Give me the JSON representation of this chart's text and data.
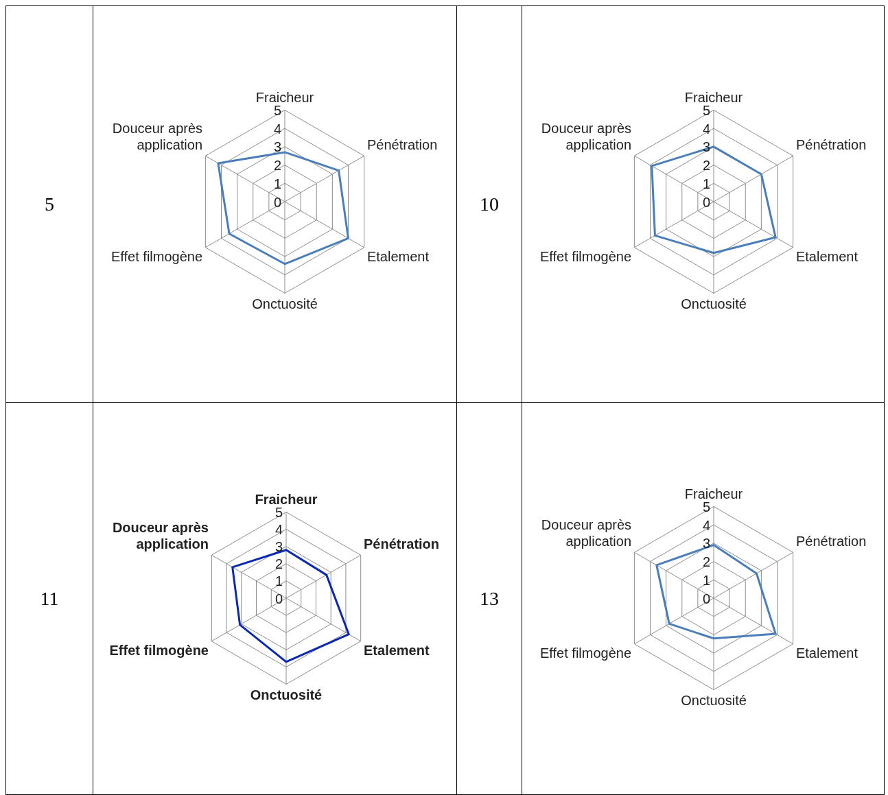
{
  "chart_data": [
    {
      "type": "radar",
      "title": "5",
      "categories": [
        "Fraicheur",
        "Pénétration",
        "Etalement",
        "Onctuosité",
        "Effet filmogène",
        "Douceur après application"
      ],
      "ylim": [
        0,
        5
      ],
      "yticks": [
        0,
        1,
        2,
        3,
        4,
        5
      ],
      "grid": true,
      "legend": false,
      "series": [
        {
          "color": "#4a7ebb",
          "values": [
            2.7,
            3.4,
            4.0,
            3.4,
            3.5,
            4.2
          ]
        }
      ]
    },
    {
      "type": "radar",
      "title": "10",
      "categories": [
        "Fraicheur",
        "Pénétration",
        "Etalement",
        "Onctuosité",
        "Effet filmogène",
        "Douceur après application"
      ],
      "ylim": [
        0,
        5
      ],
      "yticks": [
        0,
        1,
        2,
        3,
        4,
        5
      ],
      "grid": true,
      "legend": false,
      "series": [
        {
          "color": "#4a7ebb",
          "values": [
            3.0,
            3.0,
            3.9,
            2.8,
            3.7,
            3.9
          ]
        }
      ]
    },
    {
      "type": "radar",
      "title": "11",
      "categories": [
        "Fraicheur",
        "Pénétration",
        "Etalement",
        "Onctuosité",
        "Effet filmogène",
        "Douceur après application"
      ],
      "ylim": [
        0,
        5
      ],
      "yticks": [
        0,
        1,
        2,
        3,
        4,
        5
      ],
      "grid": true,
      "legend": false,
      "series": [
        {
          "color": "#0a28b4",
          "values": [
            2.8,
            2.7,
            4.2,
            3.7,
            3.1,
            3.6
          ]
        }
      ]
    },
    {
      "type": "radar",
      "title": "13",
      "categories": [
        "Fraicheur",
        "Pénétration",
        "Etalement",
        "Onctuosité",
        "Effet filmogène",
        "Douceur après application"
      ],
      "ylim": [
        0,
        5
      ],
      "yticks": [
        0,
        1,
        2,
        3,
        4,
        5
      ],
      "grid": true,
      "legend": false,
      "series": [
        {
          "color": "#4a7ebb",
          "values": [
            2.9,
            2.7,
            3.9,
            2.2,
            2.8,
            3.6
          ]
        }
      ]
    }
  ]
}
